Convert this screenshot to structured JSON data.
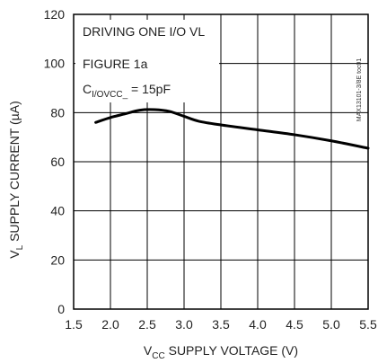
{
  "chart_data": {
    "type": "line",
    "xlabel": {
      "main": "V",
      "sub": "CC",
      "rest": " SUPPLY VOLTAGE (V)"
    },
    "ylabel": {
      "main": "V",
      "sub": "L",
      "rest": " SUPPLY CURRENT (µA)"
    },
    "xlim": [
      1.5,
      5.5
    ],
    "ylim": [
      0,
      120
    ],
    "xticks": [
      "1.5",
      "2.0",
      "2.5",
      "3.0",
      "3.5",
      "4.0",
      "4.5",
      "5.0",
      "5.5"
    ],
    "yticks": [
      "0",
      "20",
      "40",
      "60",
      "80",
      "100",
      "120"
    ],
    "xtick_values": [
      1.5,
      2.0,
      2.5,
      3.0,
      3.5,
      4.0,
      4.5,
      5.0,
      5.5
    ],
    "ytick_values": [
      0,
      20,
      40,
      60,
      80,
      100,
      120
    ],
    "grid": true,
    "annotations": {
      "line1": "DRIVING ONE I/O VL",
      "line2": "FIGURE 1a",
      "line3_main": "C",
      "line3_sub": "I/OVCC_",
      "line3_rest": " = 15pF"
    },
    "watermark": "MAX13101-3/8E toc01",
    "series": [
      {
        "x": [
          1.8,
          2.0,
          2.2,
          2.4,
          2.6,
          2.8,
          3.0,
          3.2,
          3.5,
          4.0,
          4.5,
          5.0,
          5.5
        ],
        "y": [
          76,
          78,
          79.5,
          81,
          81.2,
          80.5,
          78.5,
          76.5,
          75,
          73,
          71,
          68.5,
          65.5
        ]
      }
    ]
  }
}
